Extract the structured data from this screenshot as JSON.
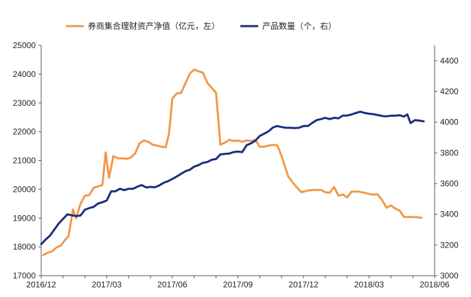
{
  "chart_data": {
    "type": "line",
    "legend_position": "top",
    "grid": false,
    "x_ticks": [
      "2016/12",
      "2017/03",
      "2017/06",
      "2017/09",
      "2017/12",
      "2018/03",
      "2018/06"
    ],
    "y_left": {
      "ticks": [
        17000,
        18000,
        19000,
        20000,
        21000,
        22000,
        23000,
        24000,
        25000
      ],
      "range": [
        17000,
        25000
      ]
    },
    "y_right": {
      "ticks": [
        3000,
        3200,
        3400,
        3600,
        3800,
        4000,
        4200,
        4400
      ],
      "range": [
        3000,
        4500
      ]
    },
    "series": [
      {
        "name": "券商集合理财资产净值（亿元，左）",
        "axis": "left",
        "color": "#f0994a",
        "points": [
          [
            0.1,
            17720
          ],
          [
            0.3,
            17800
          ],
          [
            0.5,
            17850
          ],
          [
            0.7,
            17980
          ],
          [
            0.9,
            18050
          ],
          [
            1.1,
            18250
          ],
          [
            1.25,
            18370
          ],
          [
            1.45,
            19300
          ],
          [
            1.6,
            19000
          ],
          [
            1.8,
            19500
          ],
          [
            2.0,
            19780
          ],
          [
            2.2,
            19800
          ],
          [
            2.4,
            20050
          ],
          [
            2.6,
            20100
          ],
          [
            2.8,
            20150
          ],
          [
            2.95,
            21280
          ],
          [
            3.1,
            20400
          ],
          [
            3.3,
            21150
          ],
          [
            3.5,
            21080
          ],
          [
            3.7,
            21080
          ],
          [
            3.9,
            21060
          ],
          [
            4.1,
            21100
          ],
          [
            4.3,
            21250
          ],
          [
            4.5,
            21600
          ],
          [
            4.7,
            21700
          ],
          [
            4.9,
            21650
          ],
          [
            5.1,
            21550
          ],
          [
            5.3,
            21520
          ],
          [
            5.5,
            21480
          ],
          [
            5.7,
            21460
          ],
          [
            5.85,
            21950
          ],
          [
            6.0,
            23150
          ],
          [
            6.2,
            23330
          ],
          [
            6.4,
            23350
          ],
          [
            6.6,
            23680
          ],
          [
            6.8,
            24020
          ],
          [
            7.0,
            24160
          ],
          [
            7.2,
            24100
          ],
          [
            7.4,
            24050
          ],
          [
            7.6,
            23700
          ],
          [
            7.8,
            23530
          ],
          [
            8.0,
            23350
          ],
          [
            8.2,
            21550
          ],
          [
            8.4,
            21620
          ],
          [
            8.6,
            21720
          ],
          [
            8.8,
            21680
          ],
          [
            9.0,
            21700
          ],
          [
            9.2,
            21650
          ],
          [
            9.4,
            21700
          ],
          [
            9.6,
            21680
          ],
          [
            9.8,
            21720
          ],
          [
            10.0,
            21480
          ],
          [
            10.2,
            21480
          ],
          [
            10.4,
            21520
          ],
          [
            10.6,
            21540
          ],
          [
            10.8,
            21530
          ],
          [
            11.0,
            21150
          ],
          [
            11.3,
            20450
          ],
          [
            11.6,
            20150
          ],
          [
            11.9,
            19900
          ],
          [
            12.2,
            19960
          ],
          [
            12.5,
            19980
          ],
          [
            12.8,
            19980
          ],
          [
            13.0,
            19900
          ],
          [
            13.2,
            19880
          ],
          [
            13.4,
            20080
          ],
          [
            13.6,
            19780
          ],
          [
            13.8,
            19820
          ],
          [
            14.0,
            19720
          ],
          [
            14.2,
            19920
          ],
          [
            14.5,
            19920
          ],
          [
            14.8,
            19880
          ],
          [
            15.1,
            19820
          ],
          [
            15.4,
            19820
          ],
          [
            15.6,
            19620
          ],
          [
            15.8,
            19360
          ],
          [
            16.0,
            19440
          ],
          [
            16.2,
            19330
          ],
          [
            16.4,
            19260
          ],
          [
            16.6,
            19040
          ],
          [
            16.9,
            19040
          ],
          [
            17.2,
            19030
          ],
          [
            17.4,
            19010
          ]
        ]
      },
      {
        "name": "产品数量（个，右）",
        "axis": "right",
        "color": "#1b2d7e",
        "points": [
          [
            0.0,
            3205
          ],
          [
            0.2,
            3235
          ],
          [
            0.4,
            3260
          ],
          [
            0.6,
            3300
          ],
          [
            0.8,
            3340
          ],
          [
            1.0,
            3370
          ],
          [
            1.2,
            3400
          ],
          [
            1.4,
            3393
          ],
          [
            1.6,
            3388
          ],
          [
            1.8,
            3392
          ],
          [
            2.0,
            3430
          ],
          [
            2.2,
            3440
          ],
          [
            2.4,
            3448
          ],
          [
            2.6,
            3470
          ],
          [
            2.8,
            3478
          ],
          [
            3.0,
            3490
          ],
          [
            3.2,
            3550
          ],
          [
            3.4,
            3550
          ],
          [
            3.6,
            3566
          ],
          [
            3.8,
            3557
          ],
          [
            4.0,
            3566
          ],
          [
            4.2,
            3566
          ],
          [
            4.4,
            3580
          ],
          [
            4.6,
            3590
          ],
          [
            4.8,
            3575
          ],
          [
            5.0,
            3578
          ],
          [
            5.2,
            3576
          ],
          [
            5.4,
            3588
          ],
          [
            5.6,
            3605
          ],
          [
            5.8,
            3615
          ],
          [
            6.0,
            3630
          ],
          [
            6.2,
            3646
          ],
          [
            6.4,
            3663
          ],
          [
            6.6,
            3680
          ],
          [
            6.8,
            3690
          ],
          [
            7.0,
            3710
          ],
          [
            7.2,
            3720
          ],
          [
            7.4,
            3735
          ],
          [
            7.6,
            3740
          ],
          [
            7.8,
            3755
          ],
          [
            8.0,
            3760
          ],
          [
            8.2,
            3790
          ],
          [
            8.4,
            3793
          ],
          [
            8.6,
            3795
          ],
          [
            8.8,
            3805
          ],
          [
            9.0,
            3808
          ],
          [
            9.2,
            3805
          ],
          [
            9.4,
            3850
          ],
          [
            9.6,
            3862
          ],
          [
            9.8,
            3880
          ],
          [
            10.0,
            3910
          ],
          [
            10.2,
            3925
          ],
          [
            10.4,
            3940
          ],
          [
            10.6,
            3965
          ],
          [
            10.8,
            3975
          ],
          [
            11.0,
            3968
          ],
          [
            11.2,
            3963
          ],
          [
            11.4,
            3963
          ],
          [
            11.6,
            3962
          ],
          [
            11.8,
            3963
          ],
          [
            12.0,
            3975
          ],
          [
            12.2,
            3975
          ],
          [
            12.4,
            3995
          ],
          [
            12.6,
            4013
          ],
          [
            12.8,
            4020
          ],
          [
            13.0,
            4028
          ],
          [
            13.2,
            4020
          ],
          [
            13.4,
            4028
          ],
          [
            13.6,
            4025
          ],
          [
            13.8,
            4043
          ],
          [
            14.0,
            4043
          ],
          [
            14.2,
            4050
          ],
          [
            14.4,
            4060
          ],
          [
            14.6,
            4068
          ],
          [
            14.8,
            4060
          ],
          [
            15.0,
            4055
          ],
          [
            15.2,
            4052
          ],
          [
            15.4,
            4046
          ],
          [
            15.6,
            4040
          ],
          [
            15.8,
            4038
          ],
          [
            16.0,
            4042
          ],
          [
            16.2,
            4042
          ],
          [
            16.4,
            4045
          ],
          [
            16.6,
            4036
          ],
          [
            16.75,
            4051
          ],
          [
            16.9,
            3994
          ],
          [
            17.1,
            4013
          ],
          [
            17.3,
            4010
          ],
          [
            17.5,
            4005
          ]
        ]
      }
    ]
  }
}
